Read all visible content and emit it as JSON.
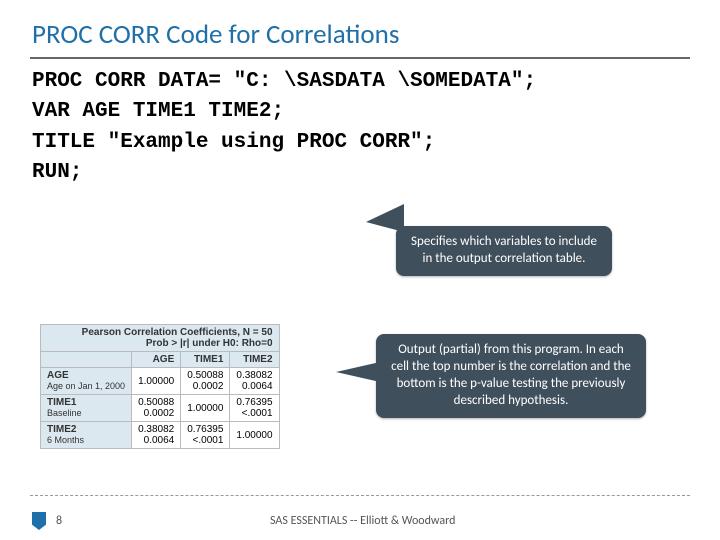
{
  "title": "PROC CORR Code for Correlations",
  "code": {
    "l1": "PROC CORR DATA= \"C: \\SASDATA \\SOMEDATA\";",
    "l2": "VAR AGE TIME1 TIME2;",
    "l3": "TITLE \"Example using PROC CORR\";",
    "l4": "RUN;"
  },
  "callout1": "Specifies which variables to include in the output correlation table.",
  "callout2": "Output (partial) from this program. In each cell the top number is the correlation and the bottom is the p-value testing the previously described hypothesis.",
  "table": {
    "header1": "Pearson Correlation Coefficients, N = 50",
    "header2": "Prob > |r| under H0: Rho=0",
    "cols": [
      "AGE",
      "TIME1",
      "TIME2"
    ],
    "rows": [
      {
        "h": "AGE",
        "sub": "Age on Jan 1, 2000",
        "v": [
          "1.00000",
          "0.50088",
          "0.38082"
        ],
        "p": [
          "",
          "0.0002",
          "0.0064"
        ]
      },
      {
        "h": "TIME1",
        "sub": "Baseline",
        "v": [
          "0.50088",
          "1.00000",
          "0.76395"
        ],
        "p": [
          "0.0002",
          "",
          "<.0001"
        ]
      },
      {
        "h": "TIME2",
        "sub": "6 Months",
        "v": [
          "0.38082",
          "0.76395",
          "1.00000"
        ],
        "p": [
          "0.0064",
          "<.0001",
          ""
        ]
      }
    ]
  },
  "footer": {
    "page": "8",
    "text": "SAS ESSENTIALS -- Elliott & Woodward"
  }
}
